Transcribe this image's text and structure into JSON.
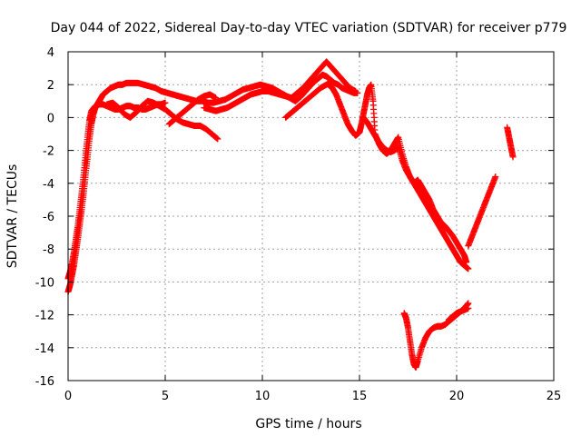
{
  "chart_data": {
    "type": "scatter",
    "title": "Day 044 of 2022, Sidereal Day-to-day VTEC variation (SDTVAR) for receiver p779",
    "xlabel": "GPS time / hours",
    "ylabel": "SDTVAR / TECUs",
    "xlim": [
      0,
      25
    ],
    "ylim": [
      -16,
      4
    ],
    "xticks": [
      0,
      5,
      10,
      15,
      20,
      25
    ],
    "yticks": [
      -16,
      -14,
      -12,
      -10,
      -8,
      -6,
      -4,
      -2,
      0,
      2,
      4
    ],
    "grid": true,
    "marker": "+",
    "color": "#ff0000",
    "series": [
      {
        "x": [
          0.0,
          0.1,
          0.2,
          0.3,
          0.4,
          0.5,
          0.6,
          0.7,
          0.8,
          0.9,
          1.0,
          1.1,
          1.2,
          1.3,
          1.4,
          1.5,
          1.6,
          1.7,
          1.8,
          2.0,
          2.2,
          2.4,
          2.6,
          2.8,
          3.0,
          3.3,
          3.6,
          3.9,
          4.2,
          4.5,
          4.8,
          5.1,
          5.4,
          5.7,
          6.0,
          6.3,
          6.6,
          6.9,
          7.2,
          7.5,
          7.8,
          8.1,
          8.4,
          8.7,
          9.0,
          9.3,
          9.6,
          9.9,
          10.2,
          10.5,
          10.8,
          11.1,
          11.4,
          11.7,
          12.0,
          12.3,
          12.6,
          12.9,
          13.1,
          13.3,
          13.5,
          13.7,
          13.9,
          14.1,
          14.3,
          14.5,
          14.7,
          14.9
        ],
        "y": [
          -10.6,
          -10.2,
          -9.6,
          -9.0,
          -8.2,
          -7.4,
          -6.5,
          -5.6,
          -4.6,
          -3.5,
          -2.4,
          -1.3,
          -0.4,
          0.2,
          0.6,
          0.8,
          1.0,
          1.2,
          1.4,
          1.6,
          1.8,
          1.9,
          2.0,
          2.0,
          2.1,
          2.1,
          2.1,
          2.0,
          1.9,
          1.8,
          1.6,
          1.5,
          1.4,
          1.3,
          1.2,
          1.1,
          1.0,
          1.0,
          0.9,
          0.9,
          1.0,
          1.1,
          1.3,
          1.5,
          1.7,
          1.8,
          1.9,
          2.0,
          1.9,
          1.8,
          1.6,
          1.4,
          1.2,
          1.0,
          1.3,
          1.7,
          2.1,
          2.4,
          2.6,
          2.5,
          2.3,
          2.1,
          2.0,
          1.8,
          1.7,
          1.6,
          1.5,
          1.5
        ]
      },
      {
        "x": [
          0.0,
          0.1,
          0.2,
          0.3,
          0.4,
          0.5,
          0.6,
          0.7,
          0.8,
          0.9,
          1.0,
          1.1,
          1.2,
          1.4,
          1.6,
          1.8,
          2.0,
          2.2,
          2.4,
          2.6,
          2.8,
          3.0,
          3.2,
          3.4,
          3.6,
          3.8,
          4.0,
          4.2,
          4.4,
          4.6,
          4.8,
          5.0
        ],
        "y": [
          -9.8,
          -9.4,
          -8.9,
          -8.2,
          -7.4,
          -6.6,
          -5.6,
          -4.6,
          -3.5,
          -2.3,
          -1.2,
          -0.2,
          0.4,
          0.7,
          0.8,
          0.8,
          0.7,
          0.6,
          0.5,
          0.5,
          0.6,
          0.7,
          0.7,
          0.6,
          0.6,
          0.5,
          0.5,
          0.6,
          0.7,
          0.8,
          0.8,
          0.9
        ]
      },
      {
        "x": [
          2.0,
          2.3,
          2.6,
          2.9,
          3.2,
          3.5,
          3.8,
          4.1,
          4.4,
          4.7,
          5.0,
          5.3,
          5.6,
          5.9,
          6.2,
          6.5,
          6.8,
          7.1,
          7.4,
          7.7
        ],
        "y": [
          0.8,
          0.9,
          0.6,
          0.2,
          0.0,
          0.3,
          0.7,
          1.0,
          0.9,
          0.7,
          0.5,
          0.2,
          -0.1,
          -0.3,
          -0.4,
          -0.5,
          -0.5,
          -0.7,
          -1.0,
          -1.3
        ]
      },
      {
        "x": [
          5.2,
          5.5,
          5.8,
          6.1,
          6.4,
          6.7,
          7.0,
          7.3,
          7.6
        ],
        "y": [
          -0.4,
          -0.1,
          0.2,
          0.5,
          0.8,
          1.1,
          1.3,
          1.4,
          1.2
        ]
      },
      {
        "x": [
          7.0,
          7.3,
          7.6,
          7.9,
          8.2,
          8.5,
          8.8,
          9.1,
          9.4,
          9.7,
          10.0,
          10.3,
          10.6,
          10.9,
          11.2,
          11.5,
          11.8,
          12.1,
          12.4,
          12.7,
          13.0,
          13.3,
          13.6,
          13.9,
          14.2,
          14.5,
          14.8
        ],
        "y": [
          0.6,
          0.5,
          0.4,
          0.5,
          0.6,
          0.8,
          1.0,
          1.2,
          1.4,
          1.5,
          1.6,
          1.6,
          1.5,
          1.4,
          1.3,
          1.2,
          1.5,
          1.8,
          2.2,
          2.6,
          3.0,
          3.4,
          3.0,
          2.6,
          2.2,
          1.8,
          1.6
        ]
      },
      {
        "x": [
          11.2,
          11.5,
          11.8,
          12.1,
          12.4,
          12.7,
          13.0,
          13.3,
          13.6
        ],
        "y": [
          0.0,
          0.3,
          0.6,
          0.9,
          1.2,
          1.5,
          1.8,
          2.0,
          2.2
        ]
      },
      {
        "x": [
          13.4,
          13.6,
          13.8,
          14.0,
          14.2,
          14.4,
          14.6,
          14.8,
          15.0,
          15.1,
          15.2,
          15.3,
          15.4,
          15.5,
          15.6,
          15.7,
          15.8,
          16.0,
          16.2,
          16.4,
          16.6,
          16.8,
          17.0,
          17.2,
          17.4,
          17.6,
          17.8,
          18.0,
          18.2,
          18.4,
          18.6,
          18.8,
          19.0,
          19.2,
          19.4,
          19.6,
          19.8,
          20.0,
          20.2,
          20.4,
          20.5
        ],
        "y": [
          2.0,
          1.8,
          1.4,
          0.8,
          0.2,
          -0.4,
          -0.8,
          -1.1,
          -0.9,
          -0.4,
          0.2,
          0.8,
          1.4,
          1.8,
          2.0,
          1.0,
          -1.0,
          -1.6,
          -2.0,
          -2.2,
          -2.0,
          -1.6,
          -1.2,
          -2.2,
          -3.0,
          -3.6,
          -4.0,
          -3.8,
          -4.2,
          -4.6,
          -5.0,
          -5.6,
          -6.0,
          -6.4,
          -6.6,
          -6.9,
          -7.2,
          -7.6,
          -8.0,
          -8.4,
          -8.8
        ]
      },
      {
        "x": [
          15.2,
          15.4,
          15.6,
          15.8,
          16.0,
          16.2,
          16.4,
          16.6,
          16.8,
          17.0,
          17.2,
          17.4,
          17.6,
          17.8,
          18.0,
          18.2,
          18.4,
          18.6,
          18.8,
          19.0,
          19.2,
          19.4,
          19.6,
          19.8,
          20.0,
          20.2,
          20.4,
          20.6
        ],
        "y": [
          0.0,
          -0.3,
          -0.7,
          -1.1,
          -1.5,
          -1.8,
          -2.0,
          -2.1,
          -2.0,
          -1.8,
          -2.6,
          -3.2,
          -3.6,
          -4.0,
          -4.4,
          -4.8,
          -5.2,
          -5.6,
          -6.0,
          -6.4,
          -6.8,
          -7.2,
          -7.6,
          -8.0,
          -8.4,
          -8.8,
          -9.0,
          -9.2
        ]
      },
      {
        "x": [
          17.3,
          17.4,
          17.5,
          17.6,
          17.7,
          17.8,
          17.9,
          18.0,
          18.2,
          18.4,
          18.6,
          18.8,
          19.0,
          19.2,
          19.4,
          19.6,
          19.8,
          20.0,
          20.2,
          20.4,
          20.6
        ],
        "y": [
          -11.9,
          -12.2,
          -12.8,
          -13.6,
          -14.4,
          -15.0,
          -15.2,
          -14.8,
          -14.0,
          -13.4,
          -13.0,
          -12.8,
          -12.7,
          -12.7,
          -12.6,
          -12.4,
          -12.2,
          -12.0,
          -11.8,
          -11.6,
          -11.3
        ]
      },
      {
        "x": [
          19.6,
          19.8,
          20.0,
          20.2,
          20.4,
          20.6
        ],
        "y": [
          -12.3,
          -12.1,
          -11.9,
          -11.8,
          -11.7,
          -11.6
        ]
      },
      {
        "x": [
          20.6,
          20.8,
          21.0,
          21.2,
          21.4,
          21.6,
          21.8,
          22.0
        ],
        "y": [
          -7.8,
          -7.2,
          -6.6,
          -6.0,
          -5.4,
          -4.8,
          -4.2,
          -3.6
        ]
      },
      {
        "x": [
          22.6,
          22.7,
          22.8,
          22.9
        ],
        "y": [
          -0.6,
          -1.2,
          -1.8,
          -2.4
        ]
      }
    ]
  }
}
